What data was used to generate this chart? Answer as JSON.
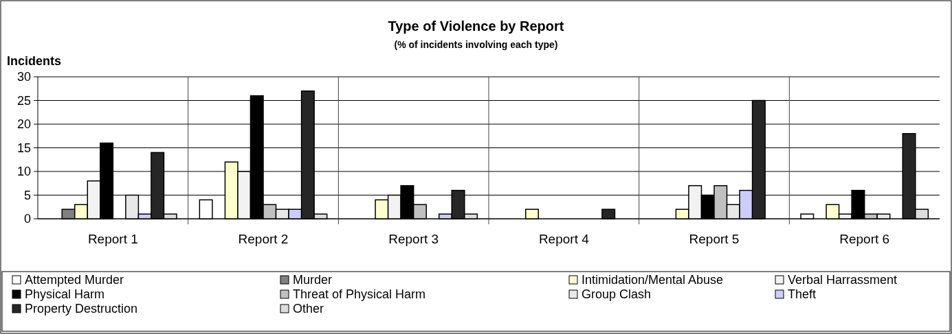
{
  "chart_data": {
    "type": "bar",
    "title": "Type of Violence by Report",
    "subtitle": "(% of incidents involving each type)",
    "ylabel": "Incidents",
    "categories": [
      "Report 1",
      "Report 2",
      "Report 3",
      "Report 4",
      "Report 5",
      "Report 6"
    ],
    "ylim": [
      0,
      30
    ],
    "yticks": [
      0,
      5,
      10,
      15,
      20,
      25,
      30
    ],
    "grid": true,
    "legend": "bottom",
    "series": [
      {
        "name": "Attempted Murder",
        "color": "#ffffff",
        "values": [
          0,
          4,
          0,
          0,
          0,
          1
        ]
      },
      {
        "name": "Murder",
        "color": "#808080",
        "values": [
          2,
          0,
          0,
          0,
          0,
          0
        ]
      },
      {
        "name": "Intimidation/Mental Abuse",
        "color": "#ffffcc",
        "values": [
          3,
          12,
          4,
          2,
          2,
          3
        ]
      },
      {
        "name": "Verbal Harrassment",
        "color": "#f2f2f2",
        "values": [
          8,
          10,
          5,
          0,
          7,
          1
        ]
      },
      {
        "name": "Physical Harm",
        "color": "#000000",
        "values": [
          16,
          26,
          7,
          0,
          5,
          6
        ]
      },
      {
        "name": "Threat of Physical Harm",
        "color": "#c0c0c0",
        "values": [
          0,
          3,
          3,
          0,
          7,
          1
        ]
      },
      {
        "name": "Group Clash",
        "color": "#e8e8e8",
        "values": [
          5,
          2,
          0,
          0,
          3,
          1
        ]
      },
      {
        "name": "Theft",
        "color": "#ccccff",
        "values": [
          1,
          2,
          1,
          0,
          6,
          0
        ]
      },
      {
        "name": "Property Destruction",
        "color": "#262626",
        "values": [
          14,
          27,
          6,
          2,
          25,
          18
        ]
      },
      {
        "name": "Other",
        "color": "#dddddd",
        "values": [
          1,
          1,
          1,
          0,
          0,
          2
        ]
      }
    ]
  }
}
